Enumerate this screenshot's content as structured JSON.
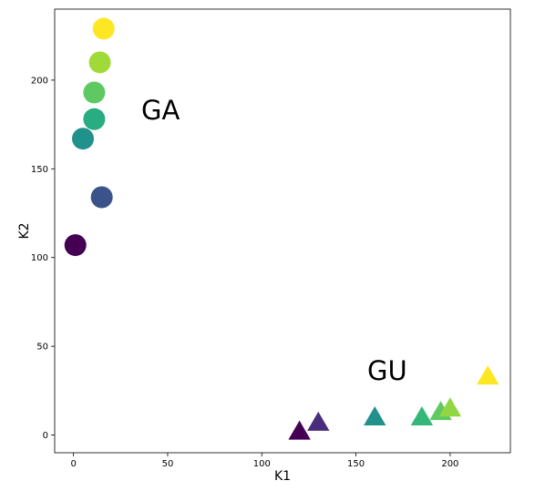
{
  "chart_data": {
    "type": "scatter",
    "title": "",
    "xlabel": "K1",
    "ylabel": "K2",
    "xlim": [
      -10,
      232
    ],
    "ylim": [
      -10,
      240
    ],
    "xticks": [
      0,
      50,
      100,
      150,
      200
    ],
    "yticks": [
      0,
      50,
      100,
      150,
      200
    ],
    "grid": false,
    "colormap": "viridis",
    "series": [
      {
        "marker": "circle",
        "points": [
          {
            "x": 1,
            "y": 107,
            "color": "#440154"
          },
          {
            "x": 15,
            "y": 134,
            "color": "#3b528b"
          },
          {
            "x": 5,
            "y": 167,
            "color": "#21918c"
          },
          {
            "x": 11,
            "y": 178,
            "color": "#27ad81"
          },
          {
            "x": 11,
            "y": 193,
            "color": "#5ec962"
          },
          {
            "x": 14,
            "y": 210,
            "color": "#a0da39"
          },
          {
            "x": 16,
            "y": 229,
            "color": "#fde725"
          }
        ]
      },
      {
        "marker": "triangle",
        "points": [
          {
            "x": 120,
            "y": 1,
            "color": "#440154"
          },
          {
            "x": 130,
            "y": 6,
            "color": "#472d7b"
          },
          {
            "x": 160,
            "y": 9,
            "color": "#21918c"
          },
          {
            "x": 185,
            "y": 9,
            "color": "#35b779"
          },
          {
            "x": 195,
            "y": 12,
            "color": "#5ec962"
          },
          {
            "x": 200,
            "y": 14,
            "color": "#90d743"
          },
          {
            "x": 220,
            "y": 32,
            "color": "#fde725"
          }
        ]
      }
    ],
    "annotations": [
      {
        "text": "GA",
        "x": 36,
        "y": 178
      },
      {
        "text": "GU",
        "x": 156,
        "y": 31
      }
    ]
  }
}
